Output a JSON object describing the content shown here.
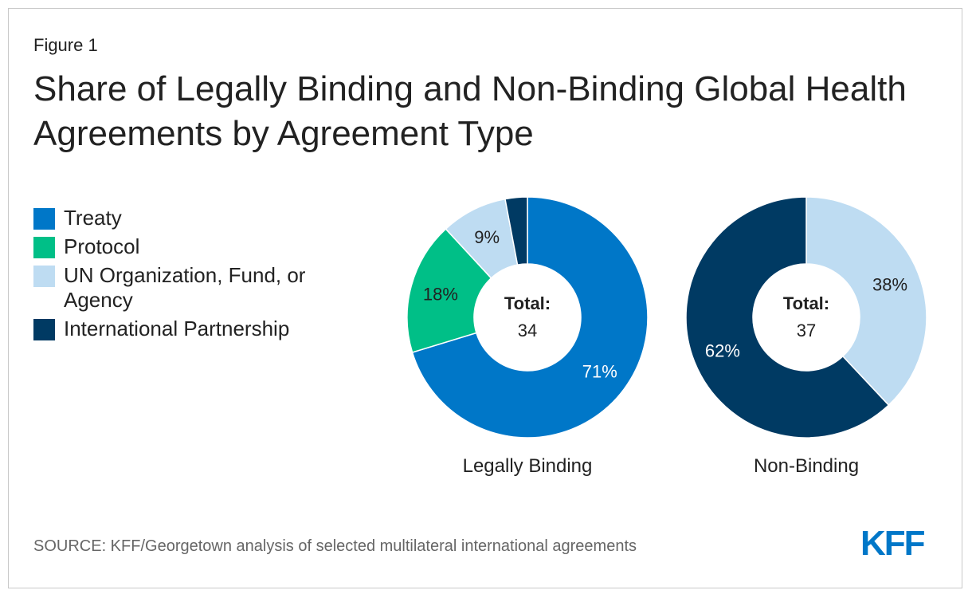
{
  "figure_label": "Figure 1",
  "title": "Share of Legally Binding and Non-Binding Global Health Agreements by Agreement Type",
  "legend": [
    {
      "label": "Treaty",
      "color": "#0077c8"
    },
    {
      "label": "Protocol",
      "color": "#00bf87"
    },
    {
      "label": "UN Organization, Fund, or Agency",
      "color": "#bedcf2"
    },
    {
      "label": "International Partnership",
      "color": "#003a63"
    }
  ],
  "source": "SOURCE: KFF/Georgetown analysis of selected multilateral international agreements",
  "logo_text": "KFF",
  "chart_data": [
    {
      "type": "pie",
      "name": "Legally Binding",
      "total_label": "Total:",
      "total": "34",
      "slices": [
        {
          "category": "Treaty",
          "value": 71,
          "label": "71%",
          "color": "#0077c8",
          "label_color": "#ffffff"
        },
        {
          "category": "Protocol",
          "value": 18,
          "label": "18%",
          "color": "#00bf87",
          "label_color": "#222222"
        },
        {
          "category": "UN Organization, Fund, or Agency",
          "value": 9,
          "label": "9%",
          "color": "#bedcf2",
          "label_color": "#222222"
        },
        {
          "category": "International Partnership",
          "value": 3,
          "label": "",
          "color": "#003a63",
          "label_color": "#ffffff"
        }
      ]
    },
    {
      "type": "pie",
      "name": "Non-Binding",
      "total_label": "Total:",
      "total": "37",
      "slices": [
        {
          "category": "UN Organization, Fund, or Agency",
          "value": 38,
          "label": "38%",
          "color": "#bedcf2",
          "label_color": "#222222"
        },
        {
          "category": "International Partnership",
          "value": 62,
          "label": "62%",
          "color": "#003a63",
          "label_color": "#ffffff"
        }
      ]
    }
  ]
}
